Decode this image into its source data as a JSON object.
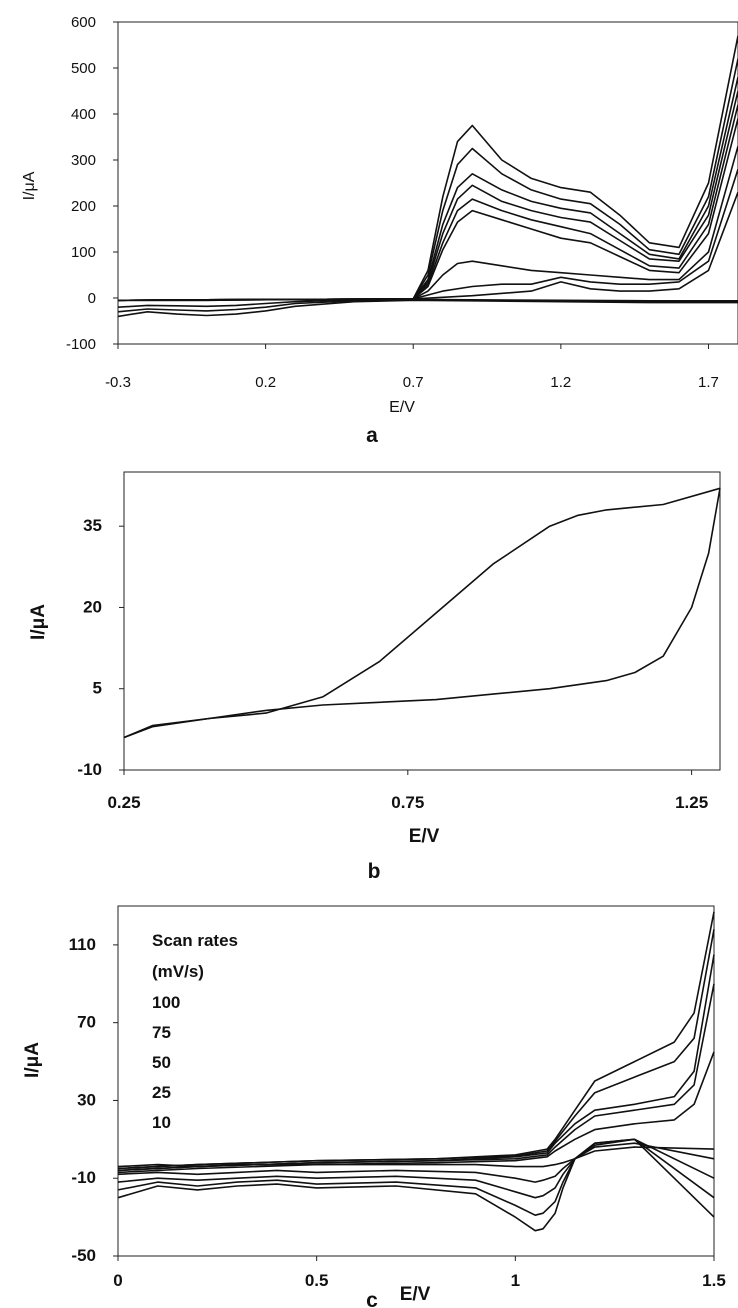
{
  "figure": {
    "panel_labels": [
      "a",
      "b",
      "c"
    ]
  },
  "chart_data": [
    {
      "type": "line",
      "panel": "a",
      "xlabel": "E/V",
      "ylabel": "I/μA",
      "xlim": [
        -0.3,
        1.8
      ],
      "ylim": [
        -100,
        600
      ],
      "xticks": [
        -0.3,
        0.2,
        0.7,
        1.2,
        1.7
      ],
      "yticks": [
        -100,
        0,
        100,
        200,
        300,
        400,
        500,
        600
      ],
      "grid": false,
      "color": "#111111",
      "series": [
        {
          "x": [
            -0.3,
            0.0,
            0.3,
            0.7,
            0.75,
            0.8,
            0.85,
            0.9,
            1.0,
            1.1,
            1.2,
            1.3,
            1.4,
            1.5,
            1.6,
            1.7,
            1.8
          ],
          "y": [
            -5,
            -5,
            -3,
            -2,
            60,
            220,
            340,
            375,
            300,
            260,
            240,
            230,
            180,
            120,
            110,
            250,
            570
          ]
        },
        {
          "x": [
            -0.3,
            0.0,
            0.3,
            0.7,
            0.75,
            0.8,
            0.85,
            0.9,
            1.0,
            1.1,
            1.2,
            1.3,
            1.4,
            1.5,
            1.6,
            1.7,
            1.8
          ],
          "y": [
            -5,
            -5,
            -3,
            -2,
            50,
            190,
            290,
            325,
            270,
            235,
            215,
            205,
            160,
            105,
            95,
            220,
            520
          ]
        },
        {
          "x": [
            -0.3,
            0.0,
            0.3,
            0.7,
            0.75,
            0.8,
            0.85,
            0.9,
            1.0,
            1.1,
            1.2,
            1.3,
            1.4,
            1.5,
            1.6,
            1.7,
            1.8
          ],
          "y": [
            -5,
            -4,
            -3,
            -2,
            40,
            160,
            240,
            270,
            235,
            210,
            195,
            185,
            140,
            95,
            85,
            200,
            480
          ]
        },
        {
          "x": [
            -0.3,
            0.0,
            0.3,
            0.7,
            0.75,
            0.8,
            0.85,
            0.9,
            1.0,
            1.1,
            1.2,
            1.3,
            1.4,
            1.5,
            1.6,
            1.7,
            1.8
          ],
          "y": [
            -5,
            -4,
            -3,
            -2,
            35,
            140,
            215,
            245,
            210,
            190,
            175,
            165,
            125,
            85,
            80,
            180,
            450
          ]
        },
        {
          "x": [
            -0.3,
            0.0,
            0.3,
            0.7,
            0.75,
            0.8,
            0.85,
            0.9,
            1.0,
            1.1,
            1.2,
            1.3,
            1.4,
            1.5,
            1.6,
            1.7,
            1.8
          ],
          "y": [
            -5,
            -4,
            -3,
            -2,
            30,
            120,
            190,
            215,
            190,
            170,
            155,
            140,
            105,
            70,
            65,
            160,
            420
          ]
        },
        {
          "x": [
            -0.3,
            0.0,
            0.3,
            0.7,
            0.75,
            0.8,
            0.85,
            0.9,
            1.0,
            1.1,
            1.2,
            1.3,
            1.4,
            1.5,
            1.6,
            1.7,
            1.8
          ],
          "y": [
            -5,
            -4,
            -3,
            -2,
            25,
            105,
            165,
            190,
            170,
            150,
            130,
            120,
            90,
            60,
            55,
            140,
            390
          ]
        },
        {
          "x": [
            -0.3,
            0.0,
            0.3,
            0.7,
            0.75,
            0.8,
            0.85,
            0.9,
            1.0,
            1.1,
            1.2,
            1.3,
            1.4,
            1.5,
            1.6,
            1.7,
            1.8
          ],
          "y": [
            -5,
            -4,
            -3,
            -2,
            15,
            50,
            75,
            80,
            70,
            60,
            55,
            50,
            45,
            40,
            40,
            100,
            330
          ]
        },
        {
          "x": [
            -0.3,
            0.0,
            0.3,
            0.7,
            0.8,
            0.9,
            1.0,
            1.1,
            1.2,
            1.3,
            1.4,
            1.5,
            1.6,
            1.7,
            1.8
          ],
          "y": [
            -5,
            -4,
            -3,
            -2,
            15,
            25,
            30,
            30,
            45,
            35,
            30,
            30,
            35,
            80,
            280
          ]
        },
        {
          "x": [
            -0.3,
            0.0,
            0.3,
            0.7,
            0.9,
            1.1,
            1.2,
            1.3,
            1.4,
            1.5,
            1.6,
            1.7,
            1.8
          ],
          "y": [
            -5,
            -4,
            -3,
            -2,
            5,
            15,
            35,
            20,
            15,
            15,
            20,
            60,
            230
          ]
        },
        {
          "x": [
            1.8,
            1.7,
            1.5,
            1.2,
            0.9,
            0.7,
            0.5,
            0.3,
            0.2,
            0.1,
            0.0,
            -0.1,
            -0.2,
            -0.3
          ],
          "y": [
            -10,
            -10,
            -10,
            -8,
            -6,
            -5,
            -8,
            -18,
            -28,
            -35,
            -38,
            -35,
            -30,
            -40
          ]
        },
        {
          "x": [
            1.8,
            1.7,
            1.5,
            1.2,
            0.9,
            0.7,
            0.5,
            0.3,
            0.2,
            0.1,
            0.0,
            -0.1,
            -0.2,
            -0.3
          ],
          "y": [
            -8,
            -8,
            -8,
            -6,
            -5,
            -4,
            -6,
            -12,
            -20,
            -25,
            -28,
            -26,
            -24,
            -30
          ]
        },
        {
          "x": [
            1.8,
            1.7,
            1.5,
            1.2,
            0.9,
            0.7,
            0.5,
            0.3,
            0.2,
            0.1,
            0.0,
            -0.1,
            -0.2,
            -0.3
          ],
          "y": [
            -6,
            -6,
            -6,
            -5,
            -4,
            -3,
            -4,
            -8,
            -12,
            -16,
            -18,
            -17,
            -16,
            -20
          ]
        }
      ]
    },
    {
      "type": "line",
      "panel": "b",
      "xlabel": "E/V",
      "ylabel": "I/μA",
      "xlim": [
        0.25,
        1.3
      ],
      "ylim": [
        -10,
        45
      ],
      "xticks": [
        0.25,
        0.75,
        1.25
      ],
      "yticks": [
        -10,
        5,
        20,
        35
      ],
      "grid": false,
      "color": "#111111",
      "series": [
        {
          "x": [
            0.25,
            0.3,
            0.4,
            0.5,
            0.6,
            0.7,
            0.8,
            0.9,
            1.0,
            1.05,
            1.1,
            1.2,
            1.3
          ],
          "y": [
            -4,
            -1.8,
            -0.5,
            0.5,
            3.5,
            10,
            19,
            28,
            35,
            37,
            38,
            39,
            42
          ]
        },
        {
          "x": [
            1.3,
            1.28,
            1.25,
            1.2,
            1.15,
            1.1,
            1.0,
            0.9,
            0.8,
            0.7,
            0.6,
            0.5,
            0.4,
            0.3,
            0.25
          ],
          "y": [
            42,
            30,
            20,
            11,
            8,
            6.5,
            5,
            4,
            3,
            2.5,
            2,
            1,
            -0.5,
            -2,
            -4
          ]
        }
      ]
    },
    {
      "type": "line",
      "panel": "c",
      "xlabel": "E/V",
      "ylabel": "I/μA",
      "xlim": [
        0,
        1.5
      ],
      "ylim": [
        -50,
        130
      ],
      "xticks": [
        0,
        0.5,
        1,
        1.5
      ],
      "yticks": [
        -50,
        -10,
        30,
        70,
        110
      ],
      "grid": false,
      "color": "#111111",
      "legend": {
        "title": "Scan rates",
        "unit": "(mV/s)",
        "entries": [
          "100",
          "75",
          "50",
          "25",
          "10"
        ]
      },
      "series": [
        {
          "name": "100",
          "x": [
            0,
            0.2,
            0.5,
            0.8,
            1.0,
            1.08,
            1.1,
            1.15,
            1.2,
            1.3,
            1.4,
            1.45,
            1.5
          ],
          "y": [
            -5,
            -3,
            -1,
            0,
            2,
            5,
            10,
            25,
            40,
            50,
            60,
            75,
            127
          ]
        },
        {
          "name": "75",
          "x": [
            0,
            0.2,
            0.5,
            0.8,
            1.0,
            1.08,
            1.1,
            1.15,
            1.2,
            1.3,
            1.4,
            1.45,
            1.5
          ],
          "y": [
            -5,
            -3,
            -1,
            0,
            1.5,
            4,
            9,
            22,
            34,
            42,
            50,
            62,
            118
          ]
        },
        {
          "name": "50",
          "x": [
            0,
            0.2,
            0.5,
            0.8,
            1.0,
            1.08,
            1.1,
            1.15,
            1.2,
            1.3,
            1.4,
            1.45,
            1.5
          ],
          "y": [
            -6,
            -4,
            -2,
            -1,
            1,
            3,
            8,
            18,
            25,
            28,
            32,
            45,
            105
          ]
        },
        {
          "name": "25",
          "x": [
            0,
            0.2,
            0.5,
            0.8,
            1.0,
            1.08,
            1.1,
            1.15,
            1.2,
            1.3,
            1.4,
            1.45,
            1.5
          ],
          "y": [
            -6,
            -4,
            -2,
            -1,
            0,
            2,
            6,
            15,
            22,
            25,
            28,
            38,
            90
          ]
        },
        {
          "name": "10",
          "x": [
            0,
            0.2,
            0.5,
            0.8,
            1.0,
            1.08,
            1.1,
            1.15,
            1.2,
            1.3,
            1.4,
            1.45,
            1.5
          ],
          "y": [
            -7,
            -5,
            -3,
            -2,
            -1,
            1,
            4,
            10,
            15,
            18,
            20,
            28,
            55
          ]
        },
        {
          "name": "100",
          "x": [
            1.5,
            1.3,
            1.2,
            1.15,
            1.12,
            1.1,
            1.07,
            1.05,
            1.0,
            0.9,
            0.7,
            0.5,
            0.4,
            0.3,
            0.2,
            0.1,
            0
          ],
          "y": [
            -30,
            10,
            8,
            0,
            -15,
            -28,
            -36,
            -37,
            -30,
            -18,
            -14,
            -15,
            -13,
            -14,
            -16,
            -14,
            -20
          ]
        },
        {
          "name": "75",
          "x": [
            1.5,
            1.3,
            1.2,
            1.15,
            1.12,
            1.1,
            1.07,
            1.05,
            1.0,
            0.9,
            0.7,
            0.5,
            0.4,
            0.3,
            0.2,
            0.1,
            0
          ],
          "y": [
            -20,
            10,
            8,
            0,
            -12,
            -22,
            -28,
            -29,
            -24,
            -15,
            -12,
            -13,
            -11,
            -12,
            -14,
            -12,
            -16
          ]
        },
        {
          "name": "50",
          "x": [
            1.5,
            1.3,
            1.2,
            1.15,
            1.12,
            1.1,
            1.07,
            1.05,
            1.0,
            0.9,
            0.7,
            0.5,
            0.4,
            0.3,
            0.2,
            0.1,
            0
          ],
          "y": [
            -10,
            10,
            7,
            0,
            -8,
            -15,
            -19,
            -20,
            -17,
            -11,
            -9,
            -10,
            -9,
            -10,
            -11,
            -10,
            -12
          ]
        },
        {
          "name": "25",
          "x": [
            1.5,
            1.3,
            1.2,
            1.15,
            1.12,
            1.1,
            1.07,
            1.05,
            1.0,
            0.9,
            0.7,
            0.5,
            0.4,
            0.3,
            0.2,
            0.1,
            0
          ],
          "y": [
            0,
            8,
            6,
            0,
            -5,
            -9,
            -11,
            -12,
            -10,
            -7,
            -6,
            -7,
            -6,
            -7,
            -8,
            -7,
            -8
          ]
        },
        {
          "name": "10",
          "x": [
            1.5,
            1.3,
            1.2,
            1.15,
            1.12,
            1.1,
            1.07,
            1.05,
            1.0,
            0.9,
            0.7,
            0.5,
            0.4,
            0.3,
            0.2,
            0.1,
            0
          ],
          "y": [
            5,
            6,
            4,
            0,
            -2,
            -3,
            -4,
            -4,
            -4,
            -3,
            -3,
            -3,
            -3,
            -3,
            -4,
            -3,
            -4
          ]
        }
      ]
    }
  ]
}
